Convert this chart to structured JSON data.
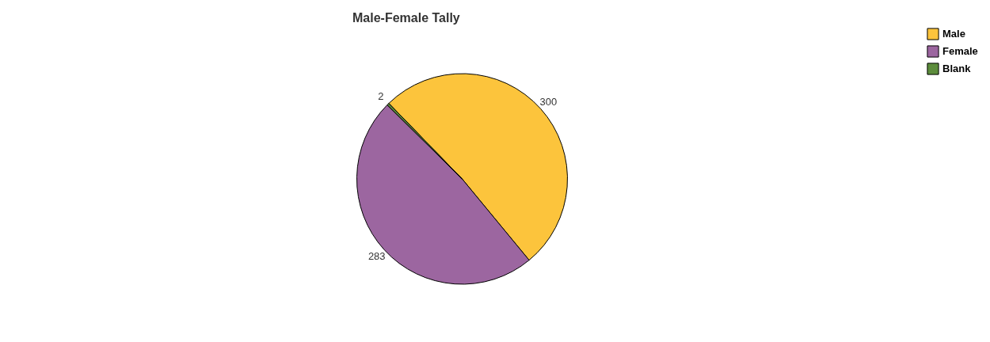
{
  "chart_data": {
    "type": "pie",
    "title": "Male-Female Tally",
    "categories": [
      "Male",
      "Female",
      "Blank"
    ],
    "values": [
      300,
      283,
      2
    ],
    "colors": [
      "#fcc43c",
      "#9c66a0",
      "#5c8c3c"
    ],
    "data_labels": true,
    "legend": "right"
  }
}
